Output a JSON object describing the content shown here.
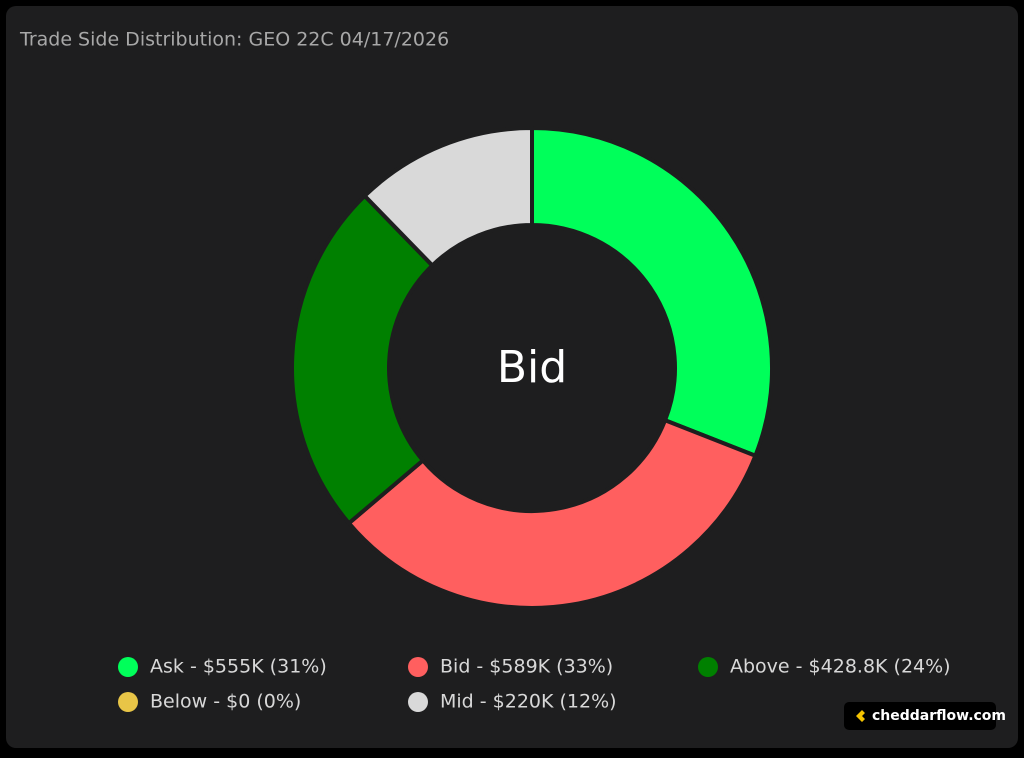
{
  "chart_data": {
    "type": "donut",
    "title": "Trade Side Distribution: GEO 22C 04/17/2026",
    "center_label": "Bid",
    "categories": [
      "Ask - $555K (31%)",
      "Bid - $589K (33%)",
      "Above - $428.8K (24%)",
      "Below - $0 (0%)",
      "Mid - $220K (12%)"
    ],
    "values": [
      555000,
      589000,
      428800,
      0,
      220000
    ],
    "colors": [
      "#00ff5a",
      "#ff5f5f",
      "#008000",
      "#e8c547",
      "#d9d9d9"
    ],
    "legend": "bottom"
  },
  "watermark": "cheddarflow.com"
}
